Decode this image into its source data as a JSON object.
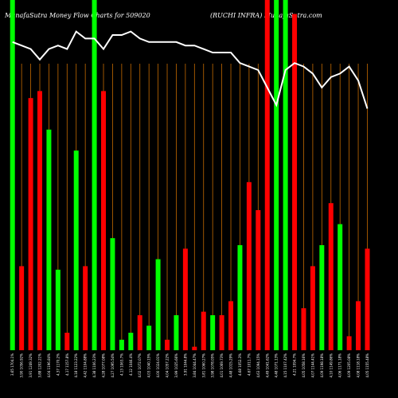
{
  "chart_data": {
    "type": "bar",
    "title_left": "MunafaSutra  Money Flow  Charts for 509020",
    "title_right": "(RUCHI INFRA) MunafaSutra.com",
    "colors": {
      "background": "#000000",
      "up": "#00ff00",
      "down": "#ff0000",
      "grid": "#c46a00",
      "line": "#ffffff"
    },
    "ylim": [
      0,
      100
    ],
    "categories": [
      "3.65 1704.1%",
      "3.90 1056.92%",
      "3.91 1249.32%",
      "3.88 1202.21%",
      "4.04 1196.84%",
      "4.37 1170.2%",
      "4.17 1157.8%",
      "4.18 1123.22%",
      "4.42 1104.88%",
      "4.38 1106.23%",
      "4.28 1077.08%",
      "4.27 1095.54%",
      "4.13 1063.7%",
      "4.12 1046.4%",
      "4.02 1072.07%",
      "4.03 1040.15%",
      "4.00 1024.01%",
      "4.04 1057.22%",
      "3.99 1025.66%",
      "3.91 1044.8%",
      "3.84 1044.47%",
      "3.81 1060.27%",
      "3.98 1078.05%",
      "4.01 1069.73%",
      "4.48 1015.29%",
      "4.68 1052.3%",
      "4.67 1011.7%",
      "4.63 1094.15%",
      "4.49 1041.62%",
      "4.48 1071.13%",
      "4.15 1107.42%",
      "4.21 1094.7%",
      "4.05 1058.16%",
      "4.07 1144.41%",
      "4.09 1198.18%",
      "4.10 1149.86%",
      "4.06 1171.18%",
      "4.09 1205.08%",
      "4.08 1118.18%",
      "4.05 1155.48%"
    ],
    "series": [
      {
        "colors": [
          "up",
          "down",
          "down",
          "down",
          "up",
          "up",
          "down",
          "up",
          "down",
          "up",
          "down",
          "up",
          "up",
          "up",
          "down",
          "up",
          "up",
          "down",
          "up",
          "down",
          "down",
          "down",
          "up",
          "down",
          "down",
          "up",
          "down",
          "down",
          "down",
          "up",
          "up",
          "down",
          "down",
          "down",
          "up",
          "down",
          "up",
          "down",
          "down",
          "down"
        ],
        "values": [
          100,
          24,
          72,
          74,
          63,
          23,
          5,
          57,
          24,
          100,
          74,
          32,
          3,
          5,
          10,
          7,
          26,
          3,
          10,
          29,
          1,
          11,
          10,
          10,
          14,
          30,
          48,
          40,
          100,
          100,
          100,
          96,
          12,
          24,
          30,
          42,
          36,
          4,
          14,
          29
        ]
      }
    ],
    "money_flow_line": [
      88,
      87,
      86,
      83,
      86,
      87,
      86,
      91,
      89,
      89,
      86,
      90,
      90,
      91,
      89,
      88,
      88,
      88,
      88,
      87,
      87,
      86,
      85,
      85,
      85,
      82,
      81,
      80,
      75,
      70,
      80,
      82,
      81,
      79,
      75,
      78,
      79,
      81,
      77,
      69
    ]
  }
}
